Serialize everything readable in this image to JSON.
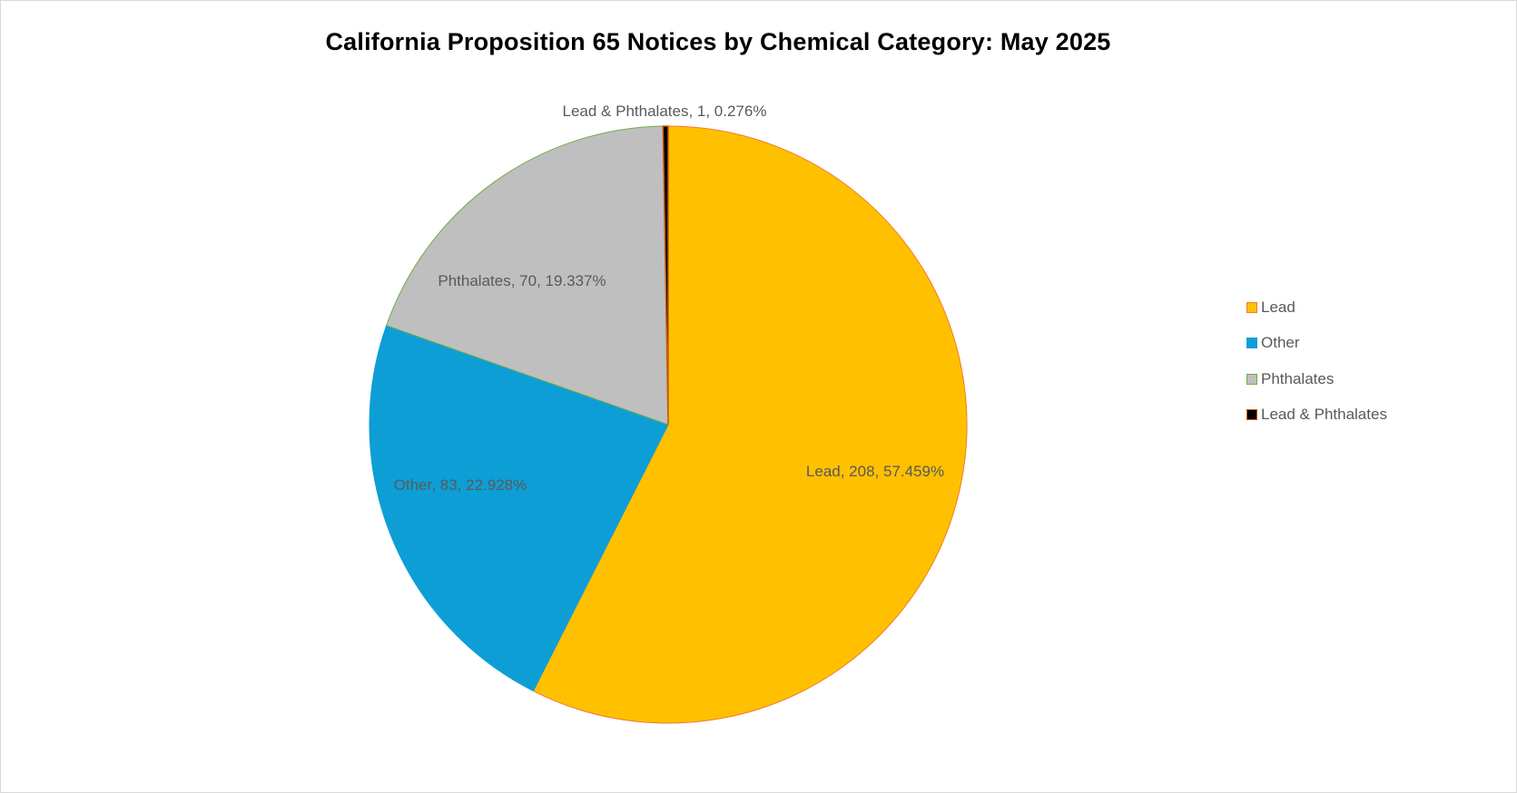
{
  "chart_data": {
    "type": "pie",
    "title": "California Proposition 65 Notices by Chemical Category: May 2025",
    "categories": [
      "Lead",
      "Other",
      "Phthalates",
      "Lead & Phthalates"
    ],
    "values": [
      208,
      83,
      70,
      1
    ],
    "percentages": [
      57.459,
      22.928,
      19.337,
      0.276
    ],
    "data_labels": [
      "Lead, 208, 57.459%",
      "Other, 83, 22.928%",
      "Phthalates, 70, 19.337%",
      "Lead & Phthalates, 1, 0.276%"
    ],
    "colors": [
      "#FFC000",
      "#0E9ED6",
      "#BFBFBF",
      "#000000"
    ],
    "border_colors": [
      "#ED7D31",
      "#0E9ED6",
      "#70AD47",
      "#C55A11"
    ],
    "start_angle": "top, clockwise",
    "legend_position": "right"
  }
}
